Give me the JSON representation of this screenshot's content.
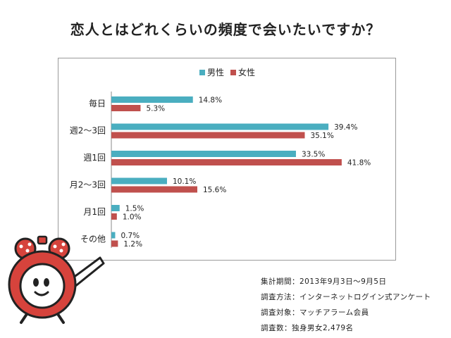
{
  "title": "恋人とはどれくらいの頻度で会いたいですか？",
  "colors": {
    "male": "#4aaec0",
    "female": "#c0504d",
    "frame": "#9a9a9a"
  },
  "chart_data": {
    "type": "bar",
    "orientation": "horizontal",
    "categories": [
      "毎日",
      "週2〜3回",
      "週1回",
      "月2〜3回",
      "月1回",
      "その他"
    ],
    "series": [
      {
        "name": "男性",
        "values": [
          14.8,
          39.4,
          33.5,
          10.1,
          1.5,
          0.7
        ]
      },
      {
        "name": "女性",
        "values": [
          5.3,
          35.1,
          41.8,
          15.6,
          1.0,
          1.2
        ]
      }
    ],
    "value_suffix": "%",
    "xlim": [
      0,
      50
    ],
    "grid": false,
    "legend_position": "top"
  },
  "footnotes": [
    "集計期間：2013年9月3日〜9月5日",
    "調査方法：インターネットログイン式アンケート",
    "調査対象：マッチアラーム会員",
    "調査数：独身男女2,479名"
  ]
}
